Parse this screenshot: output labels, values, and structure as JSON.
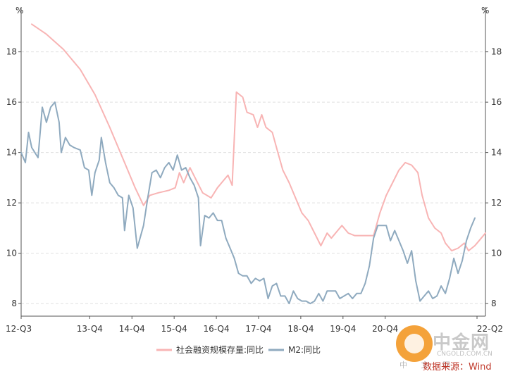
{
  "chart_data": {
    "type": "line",
    "unit_left": "%",
    "unit_right": "%",
    "x_ticks": [
      "12-Q3",
      "13-Q4",
      "14-Q4",
      "15-Q4",
      "16-Q4",
      "17-Q4",
      "18-Q4",
      "19-Q4",
      "20-Q4",
      "22-Q2"
    ],
    "y_ticks": [
      8,
      10,
      12,
      14,
      16,
      18
    ],
    "ylim": [
      7.5,
      19.5
    ],
    "grid": true,
    "legend_position": "bottom",
    "series": [
      {
        "name": "社会融资规模存量:同比",
        "color": "#f8b4b4",
        "points": [
          [
            0.5,
            19.1
          ],
          [
            1.2,
            18.7
          ],
          [
            2.0,
            18.1
          ],
          [
            2.8,
            17.3
          ],
          [
            3.5,
            16.3
          ],
          [
            4.2,
            15.0
          ],
          [
            4.9,
            13.6
          ],
          [
            5.4,
            12.6
          ],
          [
            5.8,
            11.9
          ],
          [
            6.1,
            12.3
          ],
          [
            6.5,
            12.4
          ],
          [
            7.0,
            12.5
          ],
          [
            7.3,
            12.6
          ],
          [
            7.5,
            13.2
          ],
          [
            7.7,
            12.8
          ],
          [
            8.0,
            13.4
          ],
          [
            8.3,
            12.9
          ],
          [
            8.6,
            12.4
          ],
          [
            9.0,
            12.2
          ],
          [
            9.3,
            12.6
          ],
          [
            9.6,
            12.9
          ],
          [
            9.8,
            13.1
          ],
          [
            10.0,
            12.7
          ],
          [
            10.2,
            16.4
          ],
          [
            10.5,
            16.2
          ],
          [
            10.7,
            15.6
          ],
          [
            11.0,
            15.5
          ],
          [
            11.2,
            15.0
          ],
          [
            11.4,
            15.5
          ],
          [
            11.6,
            15.0
          ],
          [
            11.9,
            14.8
          ],
          [
            12.1,
            14.2
          ],
          [
            12.4,
            13.3
          ],
          [
            12.7,
            12.8
          ],
          [
            13.0,
            12.2
          ],
          [
            13.3,
            11.6
          ],
          [
            13.6,
            11.3
          ],
          [
            13.9,
            10.8
          ],
          [
            14.2,
            10.3
          ],
          [
            14.5,
            10.8
          ],
          [
            14.7,
            10.6
          ],
          [
            15.0,
            10.9
          ],
          [
            15.2,
            11.1
          ],
          [
            15.5,
            10.8
          ],
          [
            15.8,
            10.7
          ],
          [
            16.1,
            10.7
          ],
          [
            16.4,
            10.7
          ],
          [
            16.7,
            10.7
          ],
          [
            17.0,
            11.6
          ],
          [
            17.3,
            12.3
          ],
          [
            17.6,
            12.8
          ],
          [
            17.9,
            13.3
          ],
          [
            18.2,
            13.6
          ],
          [
            18.5,
            13.5
          ],
          [
            18.8,
            13.2
          ],
          [
            19.0,
            12.3
          ],
          [
            19.3,
            11.4
          ],
          [
            19.6,
            11.0
          ],
          [
            19.9,
            10.8
          ],
          [
            20.1,
            10.4
          ],
          [
            20.4,
            10.1
          ],
          [
            20.7,
            10.2
          ],
          [
            21.0,
            10.4
          ],
          [
            21.2,
            10.1
          ],
          [
            21.5,
            10.3
          ],
          [
            21.7,
            10.5
          ],
          [
            22.0,
            10.8
          ]
        ]
      },
      {
        "name": "M2:同比",
        "color": "#8faabf",
        "points": [
          [
            0.0,
            14.0
          ],
          [
            0.2,
            13.6
          ],
          [
            0.35,
            14.8
          ],
          [
            0.5,
            14.2
          ],
          [
            0.8,
            13.8
          ],
          [
            1.0,
            15.8
          ],
          [
            1.2,
            15.2
          ],
          [
            1.4,
            15.8
          ],
          [
            1.6,
            16.0
          ],
          [
            1.8,
            15.2
          ],
          [
            1.9,
            14.0
          ],
          [
            2.1,
            14.6
          ],
          [
            2.3,
            14.3
          ],
          [
            2.5,
            14.2
          ],
          [
            2.8,
            14.1
          ],
          [
            3.0,
            13.4
          ],
          [
            3.2,
            13.3
          ],
          [
            3.35,
            12.3
          ],
          [
            3.5,
            13.2
          ],
          [
            3.7,
            13.7
          ],
          [
            3.8,
            14.6
          ],
          [
            4.0,
            13.6
          ],
          [
            4.2,
            12.8
          ],
          [
            4.4,
            12.6
          ],
          [
            4.6,
            12.3
          ],
          [
            4.8,
            12.2
          ],
          [
            4.9,
            10.9
          ],
          [
            5.1,
            12.3
          ],
          [
            5.3,
            11.8
          ],
          [
            5.5,
            10.2
          ],
          [
            5.8,
            11.1
          ],
          [
            6.0,
            12.2
          ],
          [
            6.2,
            13.2
          ],
          [
            6.4,
            13.3
          ],
          [
            6.6,
            13.0
          ],
          [
            6.8,
            13.4
          ],
          [
            7.0,
            13.6
          ],
          [
            7.2,
            13.3
          ],
          [
            7.4,
            13.9
          ],
          [
            7.6,
            13.3
          ],
          [
            7.8,
            13.4
          ],
          [
            8.0,
            13.0
          ],
          [
            8.2,
            12.7
          ],
          [
            8.4,
            12.2
          ],
          [
            8.5,
            10.3
          ],
          [
            8.7,
            11.5
          ],
          [
            8.9,
            11.4
          ],
          [
            9.1,
            11.6
          ],
          [
            9.3,
            11.3
          ],
          [
            9.5,
            11.3
          ],
          [
            9.7,
            10.6
          ],
          [
            9.9,
            10.2
          ],
          [
            10.1,
            9.8
          ],
          [
            10.3,
            9.2
          ],
          [
            10.5,
            9.1
          ],
          [
            10.7,
            9.1
          ],
          [
            10.9,
            8.8
          ],
          [
            11.1,
            9.0
          ],
          [
            11.3,
            8.9
          ],
          [
            11.5,
            9.0
          ],
          [
            11.7,
            8.2
          ],
          [
            11.9,
            8.7
          ],
          [
            12.1,
            8.8
          ],
          [
            12.3,
            8.3
          ],
          [
            12.5,
            8.3
          ],
          [
            12.7,
            8.0
          ],
          [
            12.9,
            8.5
          ],
          [
            13.1,
            8.2
          ],
          [
            13.3,
            8.1
          ],
          [
            13.5,
            8.1
          ],
          [
            13.7,
            8.0
          ],
          [
            13.9,
            8.1
          ],
          [
            14.1,
            8.4
          ],
          [
            14.3,
            8.1
          ],
          [
            14.5,
            8.5
          ],
          [
            14.7,
            8.5
          ],
          [
            14.9,
            8.5
          ],
          [
            15.1,
            8.2
          ],
          [
            15.3,
            8.3
          ],
          [
            15.5,
            8.4
          ],
          [
            15.7,
            8.2
          ],
          [
            15.9,
            8.4
          ],
          [
            16.1,
            8.4
          ],
          [
            16.3,
            8.8
          ],
          [
            16.5,
            9.5
          ],
          [
            16.7,
            10.6
          ],
          [
            16.9,
            11.1
          ],
          [
            17.1,
            11.1
          ],
          [
            17.3,
            11.1
          ],
          [
            17.5,
            10.5
          ],
          [
            17.7,
            10.9
          ],
          [
            17.9,
            10.5
          ],
          [
            18.1,
            10.1
          ],
          [
            18.3,
            9.6
          ],
          [
            18.5,
            10.1
          ],
          [
            18.7,
            8.9
          ],
          [
            18.9,
            8.1
          ],
          [
            19.1,
            8.3
          ],
          [
            19.3,
            8.5
          ],
          [
            19.5,
            8.2
          ],
          [
            19.7,
            8.3
          ],
          [
            19.9,
            8.7
          ],
          [
            20.1,
            8.4
          ],
          [
            20.3,
            9.0
          ],
          [
            20.5,
            9.8
          ],
          [
            20.7,
            9.2
          ],
          [
            20.9,
            9.7
          ],
          [
            21.1,
            10.5
          ],
          [
            21.3,
            11.0
          ],
          [
            21.5,
            11.4
          ]
        ]
      }
    ]
  },
  "watermark": {
    "name": "中金网",
    "url": "CNGOLD.COM.CN",
    "sub": "中 文 网",
    "source": "数据来源：Wind"
  }
}
